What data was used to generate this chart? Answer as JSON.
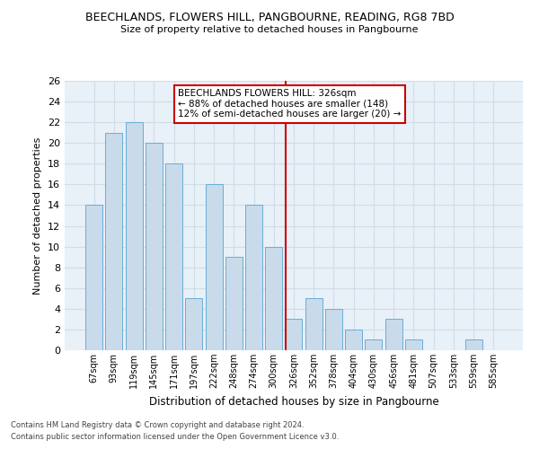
{
  "title_line1": "BEECHLANDS, FLOWERS HILL, PANGBOURNE, READING, RG8 7BD",
  "title_line2": "Size of property relative to detached houses in Pangbourne",
  "xlabel": "Distribution of detached houses by size in Pangbourne",
  "ylabel": "Number of detached properties",
  "categories": [
    "67sqm",
    "93sqm",
    "119sqm",
    "145sqm",
    "171sqm",
    "197sqm",
    "222sqm",
    "248sqm",
    "274sqm",
    "300sqm",
    "326sqm",
    "352sqm",
    "378sqm",
    "404sqm",
    "430sqm",
    "456sqm",
    "481sqm",
    "507sqm",
    "533sqm",
    "559sqm",
    "585sqm"
  ],
  "values": [
    14,
    21,
    22,
    20,
    18,
    5,
    16,
    9,
    14,
    10,
    3,
    5,
    4,
    2,
    1,
    3,
    1,
    0,
    0,
    1,
    0
  ],
  "bar_color": "#c9daea",
  "bar_edgecolor": "#6aaed6",
  "vline_index": 10,
  "vline_color": "#cc0000",
  "annotation_title": "BEECHLANDS FLOWERS HILL: 326sqm",
  "annotation_line1": "← 88% of detached houses are smaller (148)",
  "annotation_line2": "12% of semi-detached houses are larger (20) →",
  "annotation_box_facecolor": "#ffffff",
  "annotation_box_edgecolor": "#cc0000",
  "footnote1": "Contains HM Land Registry data © Crown copyright and database right 2024.",
  "footnote2": "Contains public sector information licensed under the Open Government Licence v3.0.",
  "ylim": [
    0,
    26
  ],
  "yticks": [
    0,
    2,
    4,
    6,
    8,
    10,
    12,
    14,
    16,
    18,
    20,
    22,
    24,
    26
  ],
  "grid_color": "#d0dde8",
  "bg_color": "#e8f0f8",
  "fig_width": 6.0,
  "fig_height": 5.0,
  "fig_dpi": 100
}
